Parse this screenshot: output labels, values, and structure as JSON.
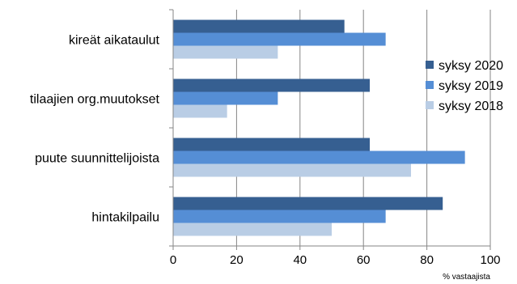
{
  "chart_data": {
    "type": "bar",
    "orientation": "horizontal",
    "categories": [
      "kireät aikataulut",
      "tilaajien org.muutokset",
      "puute suunnittelijoista",
      "hintakilpailu"
    ],
    "series": [
      {
        "name": "syksy 2020",
        "color": "#365f91",
        "values": [
          54,
          62,
          62,
          85
        ]
      },
      {
        "name": "syksy 2019",
        "color": "#558ed5",
        "values": [
          67,
          33,
          92,
          67
        ]
      },
      {
        "name": "syksy 2018",
        "color": "#b9cde5",
        "values": [
          33,
          17,
          75,
          50
        ]
      }
    ],
    "xlim": [
      0,
      100
    ],
    "xticks": [
      "0",
      "20",
      "40",
      "60",
      "80",
      "100"
    ],
    "xlabel": "% vastaajista",
    "grid": "vertical",
    "legend_position": "right"
  }
}
